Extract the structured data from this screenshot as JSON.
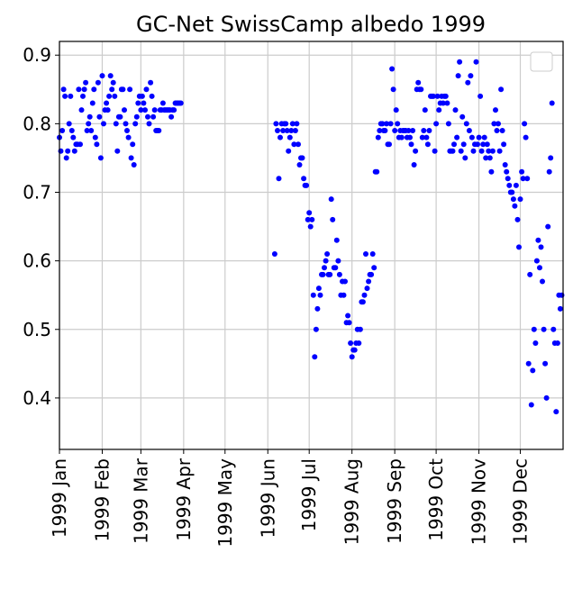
{
  "chart_data": {
    "type": "scatter",
    "title": "GC-Net SwissCamp albedo 1999",
    "xlabel": "",
    "ylabel": "",
    "x_axis": "date",
    "xlim": [
      "1999-01-01",
      "1999-12-31"
    ],
    "ylim": [
      0.325,
      0.92
    ],
    "yticks": [
      0.4,
      0.5,
      0.6,
      0.7,
      0.8,
      0.9
    ],
    "yticks_labels": [
      "0.4",
      "0.5",
      "0.6",
      "0.7",
      "0.8",
      "0.9"
    ],
    "xticks": [
      "1999-01-01",
      "1999-02-01",
      "1999-03-01",
      "1999-04-01",
      "1999-05-01",
      "1999-06-01",
      "1999-07-01",
      "1999-08-01",
      "1999-09-01",
      "1999-10-01",
      "1999-11-01",
      "1999-12-01"
    ],
    "xticks_labels": [
      "1999 Jan",
      "1999 Feb",
      "1999 Mar",
      "1999 Apr",
      "1999 May",
      "1999 Jun",
      "1999 Jul",
      "1999 Aug",
      "1999 Sep",
      "1999 Oct",
      "1999 Nov",
      "1999 Dec"
    ],
    "grid": true,
    "legend": "top-right",
    "marker_color": "#0000ff",
    "series": [
      {
        "x": [
          "1999-01-01",
          "1999-01-02",
          "1999-01-03",
          "1999-01-04",
          "1999-01-05",
          "1999-01-06",
          "1999-01-07",
          "1999-01-08",
          "1999-01-09",
          "1999-01-10",
          "1999-01-11",
          "1999-01-12",
          "1999-01-13",
          "1999-01-14",
          "1999-01-15",
          "1999-01-16",
          "1999-01-17",
          "1999-01-18",
          "1999-01-19",
          "1999-01-20",
          "1999-01-21",
          "1999-01-22",
          "1999-01-23",
          "1999-01-24",
          "1999-01-25",
          "1999-01-26",
          "1999-01-27",
          "1999-01-28",
          "1999-01-29",
          "1999-01-30",
          "1999-01-31",
          "1999-02-01",
          "1999-02-02",
          "1999-02-03",
          "1999-02-04",
          "1999-02-05",
          "1999-02-06",
          "1999-02-07",
          "1999-02-08",
          "1999-02-09",
          "1999-02-10",
          "1999-02-11",
          "1999-02-12",
          "1999-02-13",
          "1999-02-14",
          "1999-02-15",
          "1999-02-16",
          "1999-02-17",
          "1999-02-18",
          "1999-02-19",
          "1999-02-20",
          "1999-02-21",
          "1999-02-22",
          "1999-02-23",
          "1999-02-24",
          "1999-02-25",
          "1999-02-26",
          "1999-02-27",
          "1999-02-28",
          "1999-03-01",
          "1999-03-02",
          "1999-03-03",
          "1999-03-04",
          "1999-03-05",
          "1999-03-06",
          "1999-03-07",
          "1999-03-08",
          "1999-03-09",
          "1999-03-10",
          "1999-03-11",
          "1999-03-12",
          "1999-03-13",
          "1999-03-14",
          "1999-03-15",
          "1999-03-16",
          "1999-03-17",
          "1999-03-18",
          "1999-03-19",
          "1999-03-20",
          "1999-03-21",
          "1999-03-22",
          "1999-03-23",
          "1999-03-24",
          "1999-03-25",
          "1999-03-26",
          "1999-03-27",
          "1999-03-28",
          "1999-03-29",
          "1999-03-30",
          "1999-06-06",
          "1999-06-07",
          "1999-06-08",
          "1999-06-09",
          "1999-06-10",
          "1999-06-11",
          "1999-06-12",
          "1999-06-13",
          "1999-06-14",
          "1999-06-15",
          "1999-06-16",
          "1999-06-17",
          "1999-06-18",
          "1999-06-19",
          "1999-06-20",
          "1999-06-21",
          "1999-06-22",
          "1999-06-23",
          "1999-06-24",
          "1999-06-25",
          "1999-06-26",
          "1999-06-27",
          "1999-06-28",
          "1999-06-29",
          "1999-06-30",
          "1999-07-01",
          "1999-07-02",
          "1999-07-03",
          "1999-07-04",
          "1999-07-05",
          "1999-07-06",
          "1999-07-07",
          "1999-07-08",
          "1999-07-09",
          "1999-07-10",
          "1999-07-11",
          "1999-07-12",
          "1999-07-13",
          "1999-07-14",
          "1999-07-15",
          "1999-07-16",
          "1999-07-17",
          "1999-07-18",
          "1999-07-19",
          "1999-07-20",
          "1999-07-21",
          "1999-07-22",
          "1999-07-23",
          "1999-07-24",
          "1999-07-25",
          "1999-07-26",
          "1999-07-27",
          "1999-07-28",
          "1999-07-29",
          "1999-07-30",
          "1999-07-31",
          "1999-08-01",
          "1999-08-02",
          "1999-08-03",
          "1999-08-04",
          "1999-08-05",
          "1999-08-06",
          "1999-08-07",
          "1999-08-08",
          "1999-08-09",
          "1999-08-10",
          "1999-08-11",
          "1999-08-12",
          "1999-08-13",
          "1999-08-14",
          "1999-08-15",
          "1999-08-16",
          "1999-08-17",
          "1999-08-18",
          "1999-08-19",
          "1999-08-20",
          "1999-08-21",
          "1999-08-22",
          "1999-08-23",
          "1999-08-24",
          "1999-08-25",
          "1999-08-26",
          "1999-08-27",
          "1999-08-28",
          "1999-08-29",
          "1999-08-30",
          "1999-08-31",
          "1999-09-01",
          "1999-09-02",
          "1999-09-03",
          "1999-09-04",
          "1999-09-05",
          "1999-09-06",
          "1999-09-07",
          "1999-09-08",
          "1999-09-09",
          "1999-09-10",
          "1999-09-11",
          "1999-09-12",
          "1999-09-13",
          "1999-09-14",
          "1999-09-15",
          "1999-09-16",
          "1999-09-17",
          "1999-09-18",
          "1999-09-19",
          "1999-09-20",
          "1999-09-21",
          "1999-09-22",
          "1999-09-23",
          "1999-09-24",
          "1999-09-25",
          "1999-09-26",
          "1999-09-27",
          "1999-09-28",
          "1999-09-29",
          "1999-09-30",
          "1999-10-01",
          "1999-10-02",
          "1999-10-03",
          "1999-10-04",
          "1999-10-05",
          "1999-10-06",
          "1999-10-07",
          "1999-10-08",
          "1999-10-09",
          "1999-10-10",
          "1999-10-11",
          "1999-10-12",
          "1999-10-13",
          "1999-10-14",
          "1999-10-15",
          "1999-10-16",
          "1999-10-17",
          "1999-10-18",
          "1999-10-19",
          "1999-10-20",
          "1999-10-21",
          "1999-10-22",
          "1999-10-23",
          "1999-10-24",
          "1999-10-25",
          "1999-10-26",
          "1999-10-27",
          "1999-10-28",
          "1999-10-29",
          "1999-10-30",
          "1999-10-31",
          "1999-11-01",
          "1999-11-02",
          "1999-11-03",
          "1999-11-04",
          "1999-11-05",
          "1999-11-06",
          "1999-11-07",
          "1999-11-08",
          "1999-11-09",
          "1999-11-10",
          "1999-11-11",
          "1999-11-12",
          "1999-11-13",
          "1999-11-14",
          "1999-11-15",
          "1999-11-16",
          "1999-11-17",
          "1999-11-18",
          "1999-11-19",
          "1999-11-20",
          "1999-11-21",
          "1999-11-22",
          "1999-11-23",
          "1999-11-24",
          "1999-11-25",
          "1999-11-26",
          "1999-11-27",
          "1999-11-28",
          "1999-11-29",
          "1999-11-30",
          "1999-12-01",
          "1999-12-02",
          "1999-12-03",
          "1999-12-04",
          "1999-12-05",
          "1999-12-06",
          "1999-12-07",
          "1999-12-08",
          "1999-12-09",
          "1999-12-10",
          "1999-12-11",
          "1999-12-12",
          "1999-12-13",
          "1999-12-14",
          "1999-12-15",
          "1999-12-16",
          "1999-12-17",
          "1999-12-18",
          "1999-12-19",
          "1999-12-20",
          "1999-12-21",
          "1999-12-22",
          "1999-12-23",
          "1999-12-24",
          "1999-12-25",
          "1999-12-26",
          "1999-12-27",
          "1999-12-28",
          "1999-12-29",
          "1999-12-30",
          "1999-12-31"
        ],
        "y": [
          0.78,
          0.76,
          0.79,
          0.85,
          0.84,
          0.75,
          0.76,
          0.8,
          0.84,
          0.79,
          0.78,
          0.76,
          0.77,
          0.77,
          0.85,
          0.77,
          0.82,
          0.84,
          0.85,
          0.86,
          0.79,
          0.8,
          0.81,
          0.79,
          0.83,
          0.85,
          0.78,
          0.77,
          0.86,
          0.81,
          0.75,
          0.87,
          0.8,
          0.82,
          0.83,
          0.82,
          0.84,
          0.87,
          0.85,
          0.86,
          0.84,
          0.8,
          0.76,
          0.81,
          0.81,
          0.85,
          0.85,
          0.82,
          0.8,
          0.79,
          0.78,
          0.85,
          0.75,
          0.77,
          0.74,
          0.8,
          0.81,
          0.83,
          0.84,
          0.82,
          0.84,
          0.83,
          0.82,
          0.85,
          0.81,
          0.8,
          0.86,
          0.84,
          0.81,
          0.82,
          0.79,
          0.79,
          0.79,
          0.82,
          0.82,
          0.83,
          0.82,
          0.82,
          0.82,
          0.82,
          0.82,
          0.81,
          0.82,
          0.82,
          0.83,
          0.83,
          0.83,
          0.83,
          0.83,
          0.61,
          0.8,
          0.79,
          0.72,
          0.78,
          0.8,
          0.79,
          0.8,
          0.8,
          0.79,
          0.76,
          0.78,
          0.79,
          0.8,
          0.77,
          0.79,
          0.8,
          0.77,
          0.74,
          0.75,
          0.75,
          0.72,
          0.71,
          0.71,
          0.66,
          0.67,
          0.65,
          0.66,
          0.55,
          0.46,
          0.5,
          0.53,
          0.56,
          0.55,
          0.58,
          0.58,
          0.59,
          0.6,
          0.61,
          0.58,
          0.58,
          0.69,
          0.66,
          0.59,
          0.59,
          0.63,
          0.6,
          0.58,
          0.55,
          0.57,
          0.55,
          0.57,
          0.51,
          0.52,
          0.51,
          0.48,
          0.46,
          0.47,
          0.47,
          0.48,
          0.5,
          0.48,
          0.5,
          0.54,
          0.54,
          0.55,
          0.61,
          0.56,
          0.57,
          0.58,
          0.58,
          0.61,
          0.59,
          0.73,
          0.73,
          0.78,
          0.79,
          0.8,
          0.8,
          0.79,
          0.79,
          0.8,
          0.77,
          0.77,
          0.8,
          0.88,
          0.85,
          0.79,
          0.82,
          0.8,
          0.78,
          0.79,
          0.78,
          0.79,
          0.79,
          0.79,
          0.78,
          0.79,
          0.78,
          0.77,
          0.79,
          0.74,
          0.76,
          0.85,
          0.86,
          0.85,
          0.85,
          0.78,
          0.79,
          0.82,
          0.78,
          0.77,
          0.79,
          0.84,
          0.84,
          0.84,
          0.76,
          0.8,
          0.84,
          0.82,
          0.83,
          0.84,
          0.83,
          0.84,
          0.84,
          0.83,
          0.8,
          0.76,
          0.76,
          0.76,
          0.77,
          0.82,
          0.78,
          0.87,
          0.89,
          0.76,
          0.81,
          0.77,
          0.75,
          0.8,
          0.86,
          0.79,
          0.87,
          0.78,
          0.76,
          0.77,
          0.89,
          0.77,
          0.78,
          0.84,
          0.76,
          0.77,
          0.78,
          0.75,
          0.77,
          0.76,
          0.75,
          0.73,
          0.76,
          0.8,
          0.82,
          0.79,
          0.8,
          0.76,
          0.85,
          0.79,
          0.77,
          0.74,
          0.73,
          0.72,
          0.71,
          0.7,
          0.7,
          0.69,
          0.68,
          0.71,
          0.66,
          0.62,
          0.69,
          0.73,
          0.72,
          0.8,
          0.78,
          0.72,
          0.45,
          0.58,
          0.39,
          0.44,
          0.5,
          0.48,
          0.6,
          0.63,
          0.59,
          0.62,
          0.57,
          0.5,
          0.45,
          0.4,
          0.65,
          0.73,
          0.75,
          0.83,
          0.5,
          0.48,
          0.38,
          0.48,
          0.55,
          0.53,
          0.55
        ]
      }
    ]
  }
}
